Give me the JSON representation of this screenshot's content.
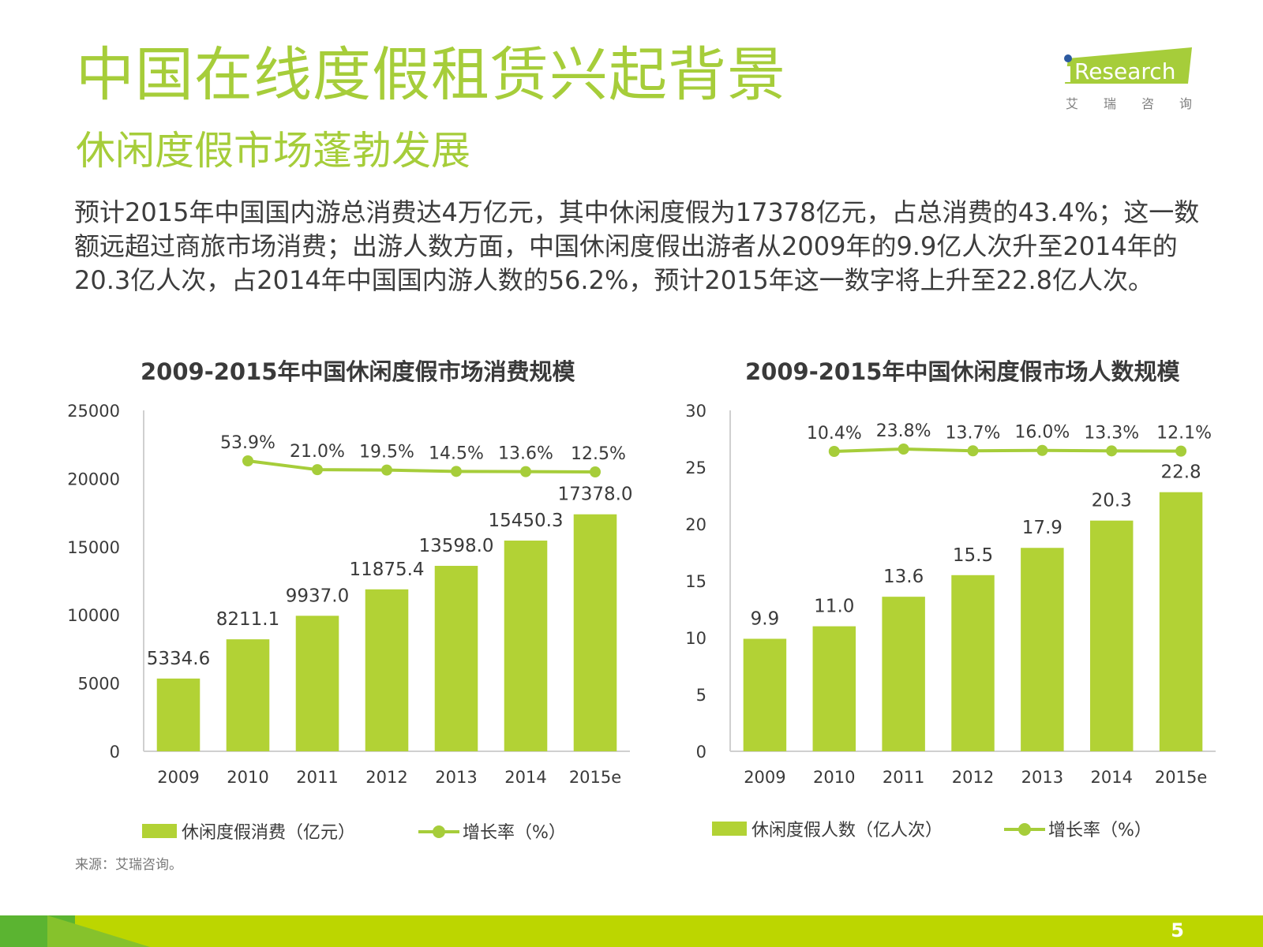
{
  "header": {
    "title": "中国在线度假租赁兴起背景",
    "subtitle": "休闲度假市场蓬勃发展",
    "logo_text": "Research",
    "logo_i": "i",
    "logo_tagline": [
      "艾",
      "瑞",
      "咨",
      "询"
    ]
  },
  "body_text": "预计2015年中国国内游总消费达4万亿元，其中休闲度假为17378亿元，占总消费的43.4%；这一数额远超过商旅市场消费；出游人数方面，中国休闲度假出游者从2009年的9.9亿人次升至2014年的20.3亿人次，占2014年中国国内游人数的56.2%，预计2015年这一数字将上升至22.8亿人次。",
  "source": "来源：艾瑞咨询。",
  "page_number": "5",
  "colors": {
    "accent": "#a6cd3a",
    "bar": "#b2d235",
    "footer": "#bcd600",
    "text": "#3a3a3a"
  },
  "chart_data": [
    {
      "type": "bar",
      "title": "2009-2015年中国休闲度假市场消费规模",
      "categories": [
        "2009",
        "2010",
        "2011",
        "2012",
        "2013",
        "2014",
        "2015e"
      ],
      "series": [
        {
          "name": "休闲度假消费（亿元）",
          "type": "bar",
          "values": [
            5334.6,
            8211.1,
            9937.0,
            11875.4,
            13598.0,
            15450.3,
            17378.0
          ],
          "labels": [
            "5334.6",
            "8211.1",
            "9937.0",
            "11875.4",
            "13598.0",
            "15450.3",
            "17378.0"
          ]
        },
        {
          "name": "增长率（%）",
          "type": "line",
          "values": [
            53.9,
            21.0,
            19.5,
            14.5,
            13.6,
            12.5
          ],
          "categories": [
            "2010",
            "2011",
            "2012",
            "2013",
            "2014",
            "2015e"
          ],
          "labels": [
            "53.9%",
            "21.0%",
            "19.5%",
            "14.5%",
            "13.6%",
            "12.5%"
          ]
        }
      ],
      "yticks": [
        "0",
        "5000",
        "10000",
        "15000",
        "20000",
        "25000"
      ],
      "ylim": [
        0,
        25000
      ],
      "xlabel": "",
      "ylabel": "",
      "grid": false,
      "legend": "bottom"
    },
    {
      "type": "bar",
      "title": "2009-2015年中国休闲度假市场人数规模",
      "categories": [
        "2009",
        "2010",
        "2011",
        "2012",
        "2013",
        "2014",
        "2015e"
      ],
      "series": [
        {
          "name": "休闲度假人数（亿人次）",
          "type": "bar",
          "values": [
            9.9,
            11.0,
            13.6,
            15.5,
            17.9,
            20.3,
            22.8
          ],
          "labels": [
            "9.9",
            "11.0",
            "13.6",
            "15.5",
            "17.9",
            "20.3",
            "22.8"
          ]
        },
        {
          "name": "增长率（%）",
          "type": "line",
          "values": [
            10.4,
            23.8,
            13.7,
            16.0,
            13.3,
            12.1
          ],
          "categories": [
            "2010",
            "2011",
            "2012",
            "2013",
            "2014",
            "2015e"
          ],
          "labels": [
            "10.4%",
            "23.8%",
            "13.7%",
            "16.0%",
            "13.3%",
            "12.1%"
          ]
        }
      ],
      "yticks": [
        "0",
        "5",
        "10",
        "15",
        "20",
        "25",
        "30"
      ],
      "ylim": [
        0,
        30
      ],
      "xlabel": "",
      "ylabel": "",
      "grid": false,
      "legend": "bottom"
    }
  ]
}
